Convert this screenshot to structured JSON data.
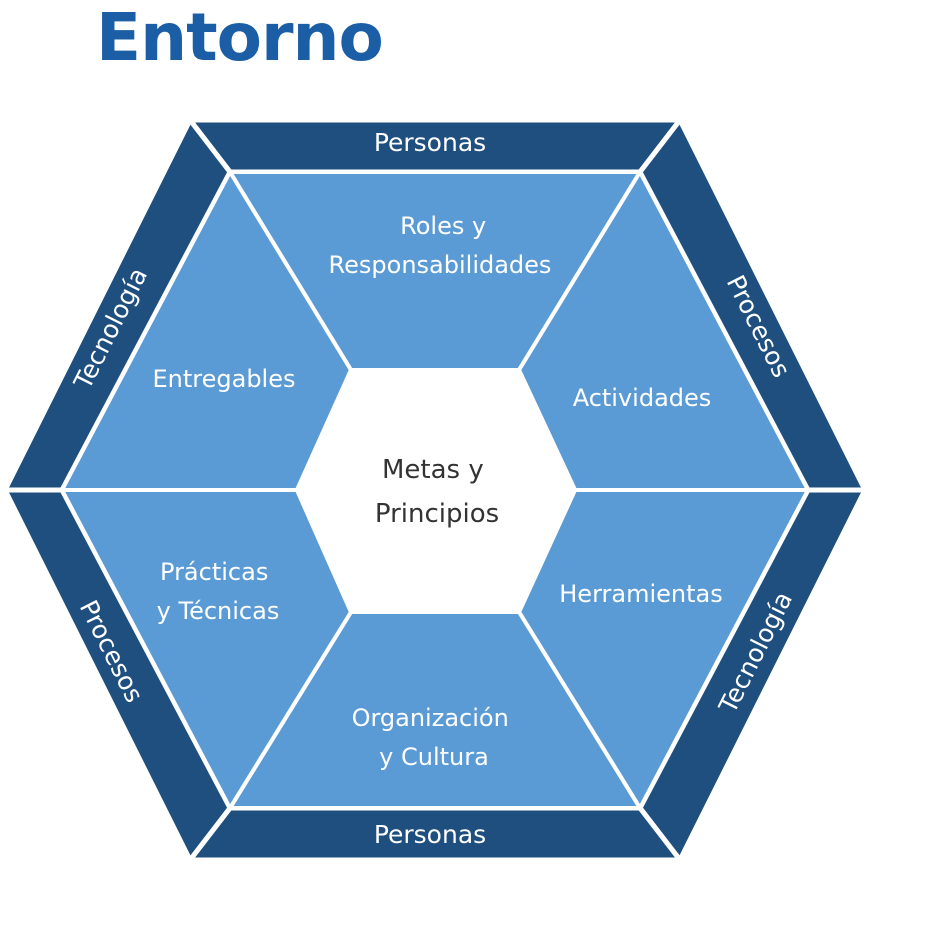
{
  "title": "Entorno",
  "colors": {
    "title": "#1c5ea6",
    "outer_band": "#1f4f7f",
    "segment_fill": "#5b9bd5",
    "separator": "#ffffff",
    "center_fill": "#ffffff",
    "center_text": "#333333"
  },
  "diagram": {
    "center": [
      "Metas y",
      "Principios"
    ],
    "segments": [
      {
        "id": "top",
        "lines": [
          "Roles y",
          "Responsabilidades"
        ]
      },
      {
        "id": "upper-right",
        "lines": [
          "Actividades"
        ]
      },
      {
        "id": "lower-right",
        "lines": [
          "Herramientas"
        ]
      },
      {
        "id": "bottom",
        "lines": [
          "Organización",
          "y Cultura"
        ]
      },
      {
        "id": "lower-left",
        "lines": [
          "Prácticas",
          "y Técnicas"
        ]
      },
      {
        "id": "upper-left",
        "lines": [
          "Entregables"
        ]
      }
    ],
    "bands": [
      {
        "id": "top",
        "label": "Personas"
      },
      {
        "id": "upper-right",
        "label": "Procesos"
      },
      {
        "id": "lower-right",
        "label": "Tecnología"
      },
      {
        "id": "bottom",
        "label": "Personas"
      },
      {
        "id": "lower-left",
        "label": "Procesos"
      },
      {
        "id": "upper-left",
        "label": "Tecnología"
      }
    ]
  }
}
